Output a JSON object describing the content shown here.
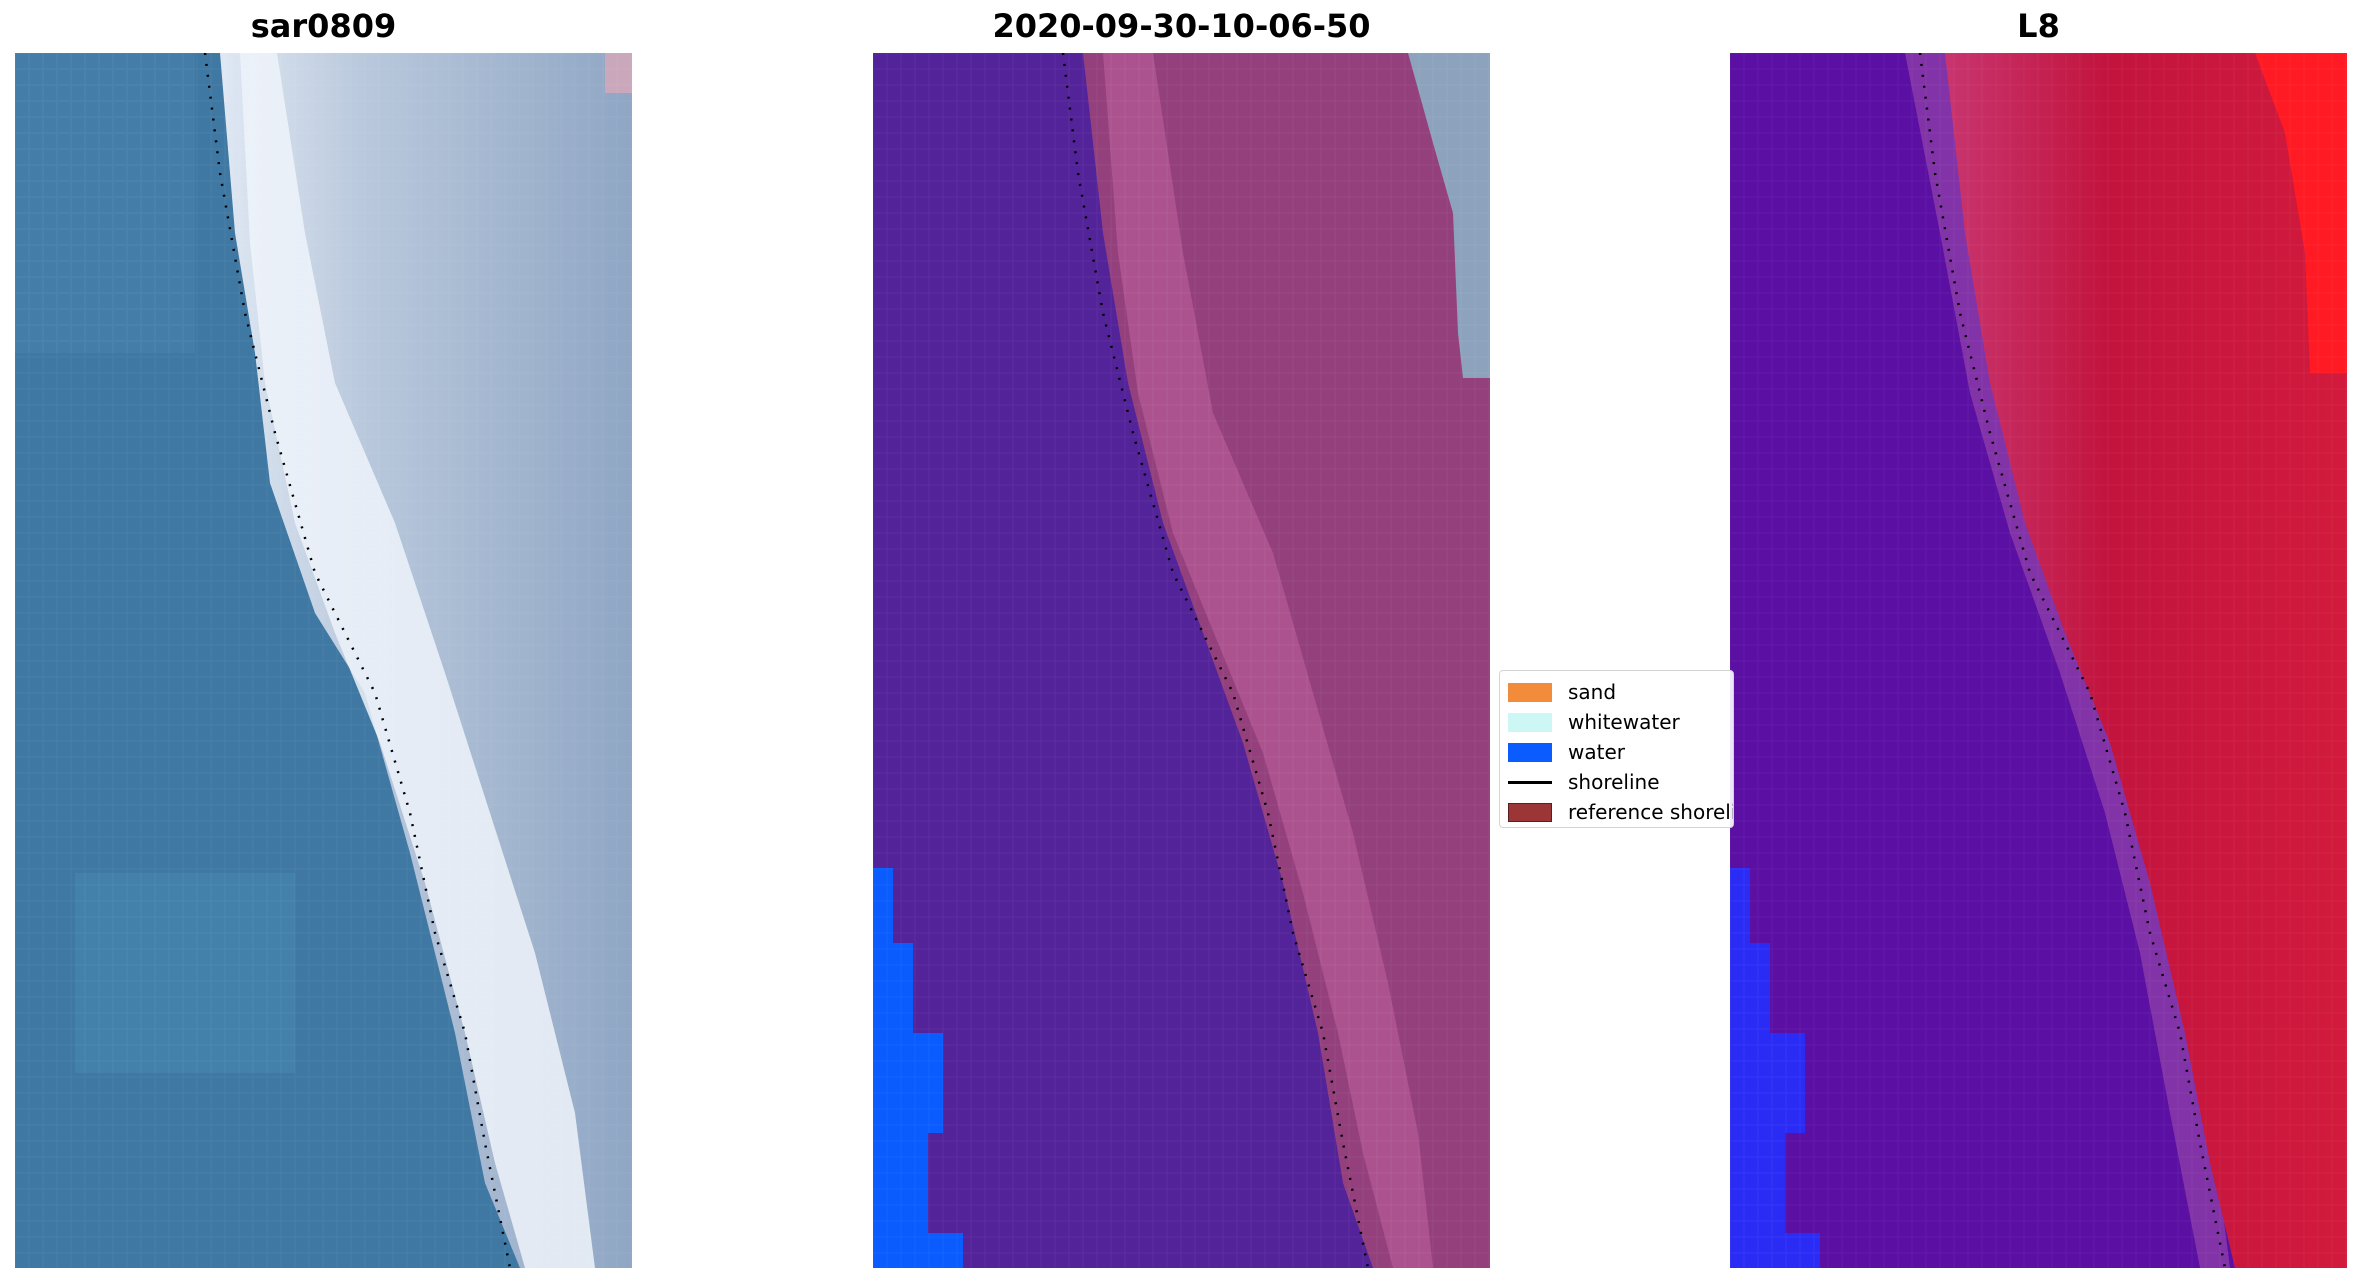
{
  "panels": [
    {
      "title": "sar0809"
    },
    {
      "title": "2020-09-30-10-06-50"
    },
    {
      "title": "L8"
    }
  ],
  "legend": {
    "items": [
      {
        "label": "sand",
        "kind": "patch",
        "color": "#f28c3b"
      },
      {
        "label": "whitewater",
        "kind": "patch",
        "color": "#ccf7f4"
      },
      {
        "label": "water",
        "kind": "patch",
        "color": "#0a5cff"
      },
      {
        "label": "shoreline",
        "kind": "line",
        "color": "#000000"
      },
      {
        "label": "reference shoreline",
        "kind": "patch",
        "color": "#9c3535"
      }
    ]
  },
  "colors": {
    "rgb_water": "#3f78a3",
    "rgb_land": "#8fa6c4",
    "rgb_surf": "#e6eef7",
    "cls_water_dark": "#53239a",
    "cls_land": "#93407c",
    "cls_water_blue": "#0a5cff",
    "mndwi_water": "#5b0fa3",
    "mndwi_land": "#c2143e",
    "mndwi_bright": "#ff1a24",
    "mndwi_blue": "#2a2cf5"
  }
}
